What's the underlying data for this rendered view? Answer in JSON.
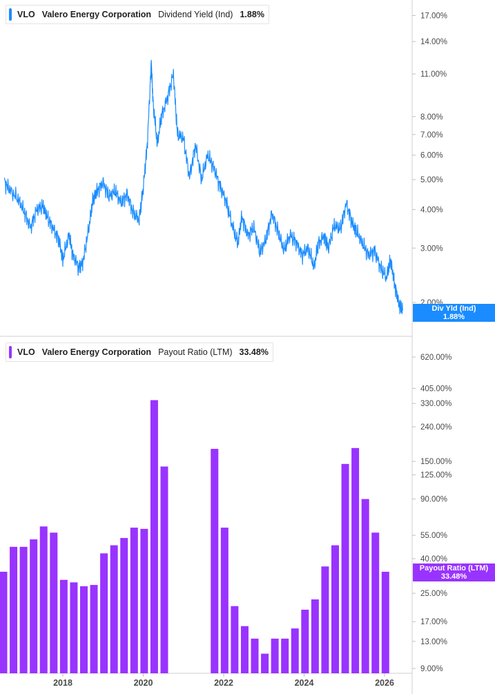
{
  "colors": {
    "yield_series": "#1a8cff",
    "payout_series": "#9933ff",
    "axis_text": "#4a4a4a",
    "grid": "#d9d9d9"
  },
  "panels": {
    "top": {
      "ticker": "VLO",
      "company": "Valero Energy Corporation",
      "metric": "Dividend Yield (Ind)",
      "value": "1.88%",
      "tag_label": "Div Yld (Ind)",
      "tag_value": "1.88%"
    },
    "bottom": {
      "ticker": "VLO",
      "company": "Valero Energy Corporation",
      "metric": "Payout Ratio (LTM)",
      "value": "33.48%",
      "tag_label": "Payout Ratio (LTM)",
      "tag_value": "33.48%"
    }
  },
  "chart_data": [
    {
      "type": "line",
      "title": "Dividend Yield (Ind)",
      "series": [
        {
          "name": "Dividend Yield (Ind)",
          "x": [
            2016.55,
            2016.7,
            2016.9,
            2017.05,
            2017.2,
            2017.35,
            2017.5,
            2017.6,
            2017.75,
            2017.9,
            2018.0,
            2018.15,
            2018.25,
            2018.4,
            2018.5,
            2018.65,
            2018.75,
            2018.85,
            2019.0,
            2019.15,
            2019.3,
            2019.45,
            2019.6,
            2019.75,
            2019.9,
            2020.0,
            2020.1,
            2020.2,
            2020.24,
            2020.35,
            2020.45,
            2020.6,
            2020.75,
            2020.85,
            2021.0,
            2021.15,
            2021.3,
            2021.45,
            2021.6,
            2021.75,
            2021.9,
            2022.05,
            2022.2,
            2022.35,
            2022.45,
            2022.6,
            2022.75,
            2022.9,
            2023.05,
            2023.2,
            2023.35,
            2023.5,
            2023.65,
            2023.8,
            2023.95,
            2024.1,
            2024.25,
            2024.35,
            2024.5,
            2024.6,
            2024.75,
            2024.9,
            2025.05,
            2025.2,
            2025.3,
            2025.45,
            2025.6,
            2025.75,
            2025.9,
            2026.05,
            2026.15,
            2026.25,
            2026.35,
            2026.45
          ],
          "values": [
            4.9,
            4.6,
            4.3,
            3.9,
            3.5,
            4.0,
            4.1,
            3.8,
            3.5,
            3.2,
            2.75,
            3.3,
            2.85,
            2.6,
            2.7,
            3.5,
            4.3,
            4.6,
            4.9,
            4.4,
            4.6,
            4.2,
            4.5,
            3.9,
            3.7,
            4.7,
            6.5,
            12.0,
            9.0,
            6.5,
            8.0,
            9.2,
            11.0,
            7.0,
            6.8,
            5.1,
            6.5,
            5.0,
            6.0,
            5.5,
            4.8,
            4.3,
            3.6,
            3.1,
            3.8,
            3.3,
            3.5,
            2.9,
            3.2,
            3.9,
            3.4,
            2.95,
            3.3,
            3.15,
            2.85,
            3.0,
            2.6,
            3.1,
            3.3,
            3.0,
            3.55,
            3.45,
            4.2,
            3.6,
            3.4,
            3.1,
            2.85,
            2.95,
            2.6,
            2.4,
            2.75,
            2.3,
            2.0,
            1.88
          ]
        }
      ],
      "y_scale": "log",
      "y_ticks": [
        "17.00%",
        "14.00%",
        "11.00%",
        "8.00%",
        "7.00%",
        "6.00%",
        "5.00%",
        "4.00%",
        "3.00%",
        "2.00%"
      ]
    },
    {
      "type": "bar",
      "title": "Payout Ratio (LTM)",
      "categories": [
        "2016Q4",
        "2017Q1",
        "2017Q2",
        "2017Q3",
        "2017Q4",
        "2018Q1",
        "2018Q2",
        "2018Q3",
        "2018Q4",
        "2019Q1",
        "2019Q2",
        "2019Q3",
        "2019Q4",
        "2020Q1",
        "2020Q2",
        "2020Q3",
        "2020Q4",
        "2021Q1",
        "2021Q2",
        "2021Q3",
        "2021Q4",
        "2022Q1",
        "2022Q2",
        "2022Q3",
        "2022Q4",
        "2023Q1",
        "2023Q2",
        "2023Q3",
        "2023Q4",
        "2024Q1",
        "2024Q2",
        "2024Q3",
        "2024Q4",
        "2025Q1",
        "2025Q2",
        "2025Q3",
        "2025Q4",
        "2026Q1",
        "2026Q2"
      ],
      "series": [
        {
          "name": "Payout Ratio (LTM)",
          "values": [
            33.5,
            47,
            47,
            52,
            62,
            57,
            30,
            29,
            27.5,
            28,
            43,
            48,
            53,
            61,
            60,
            345,
            140,
            null,
            null,
            null,
            null,
            178,
            61,
            21,
            16,
            13.5,
            11,
            13.5,
            13.5,
            15.5,
            20,
            23,
            36,
            48,
            145,
            180,
            90,
            57,
            33.48
          ]
        }
      ],
      "y_scale": "log",
      "y_ticks": [
        "620.00%",
        "405.00%",
        "330.00%",
        "240.00%",
        "150.00%",
        "125.00%",
        "90.00%",
        "55.00%",
        "40.00%",
        "25.00%",
        "17.00%",
        "13.00%",
        "9.00%"
      ]
    }
  ],
  "x_axis": {
    "year_labels": [
      "2018",
      "2020",
      "2022",
      "2024",
      "2026"
    ]
  }
}
